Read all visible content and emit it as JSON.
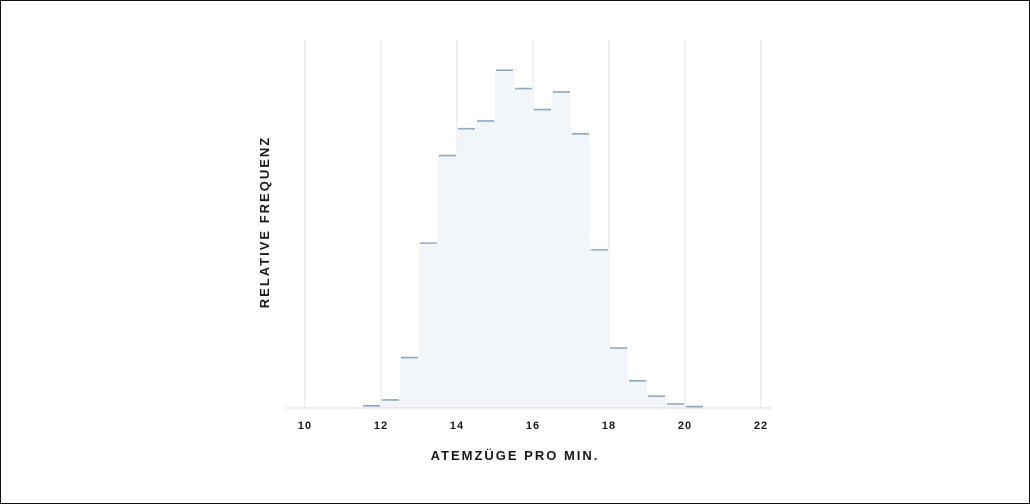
{
  "chart_data": {
    "type": "histogram",
    "xlabel": "ATEMZÜGE PRO MIN.",
    "ylabel": "RELATIVE FREQUENZ",
    "xlim": [
      10,
      22
    ],
    "ylim": [
      0,
      1
    ],
    "x_ticks": [
      "10",
      "12",
      "14",
      "16",
      "18",
      "20",
      "22"
    ],
    "grid": "vertical",
    "bin_width": 0.5,
    "bin_starts": [
      11.5,
      12.0,
      12.5,
      13.0,
      13.5,
      14.0,
      14.5,
      15.0,
      15.5,
      16.0,
      16.5,
      17.0,
      17.5,
      18.0,
      18.5,
      19.0,
      19.5,
      20.0
    ],
    "values": [
      0.006,
      0.022,
      0.137,
      0.448,
      0.686,
      0.759,
      0.78,
      0.918,
      0.868,
      0.811,
      0.859,
      0.745,
      0.43,
      0.163,
      0.074,
      0.032,
      0.011,
      0.004
    ],
    "colors": {
      "fill": "#f2f6fa",
      "cap": "#8eaac4",
      "grid": "#e2e5e9",
      "baseline": "#d8dbdf",
      "text": "#1a1a1a"
    }
  }
}
